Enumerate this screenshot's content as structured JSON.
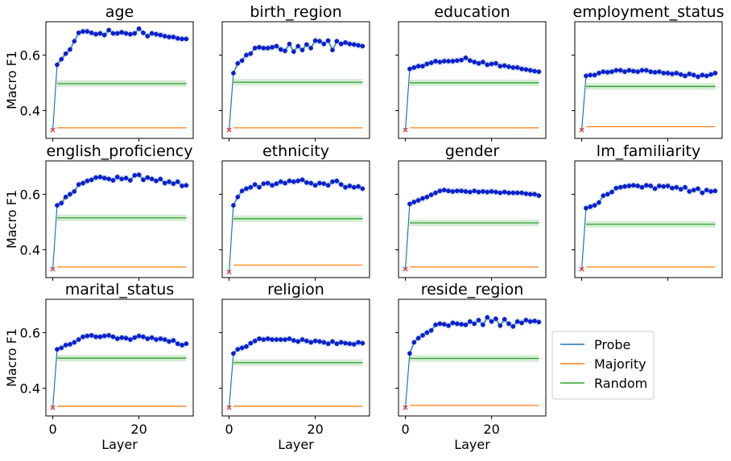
{
  "chart_data": {
    "type": "line",
    "ylabel": "Macro F1",
    "xlabel": "Layer",
    "xlim": [
      -1.6,
      32.6
    ],
    "ylim": [
      0.3,
      0.72
    ],
    "xticks": [
      0,
      20
    ],
    "yticks": [
      0.4,
      0.6
    ],
    "ytick_labels": [
      "0.4",
      "0.6"
    ],
    "layers": [
      0,
      1,
      2,
      3,
      4,
      5,
      6,
      7,
      8,
      9,
      10,
      11,
      12,
      13,
      14,
      15,
      16,
      17,
      18,
      19,
      20,
      21,
      22,
      23,
      24,
      25,
      26,
      27,
      28,
      29,
      30,
      31
    ],
    "legend": {
      "placement": "right",
      "entries": [
        {
          "name": "Probe",
          "color": "#1f77b4"
        },
        {
          "name": "Majority",
          "color": "#ff7f0e"
        },
        {
          "name": "Random",
          "color": "#2ca02c"
        }
      ]
    },
    "panels": [
      {
        "title": "age",
        "majority": 0.338,
        "random": 0.497,
        "probe": [
          0.33,
          0.565,
          0.585,
          0.605,
          0.62,
          0.65,
          0.68,
          0.685,
          0.685,
          0.68,
          0.675,
          0.678,
          0.672,
          0.69,
          0.678,
          0.678,
          0.682,
          0.678,
          0.675,
          0.678,
          0.695,
          0.68,
          0.668,
          0.678,
          0.675,
          0.672,
          0.668,
          0.665,
          0.665,
          0.66,
          0.658,
          0.658
        ]
      },
      {
        "title": "birth_region",
        "majority": 0.338,
        "random": 0.502,
        "probe": [
          0.33,
          0.535,
          0.57,
          0.58,
          0.6,
          0.605,
          0.625,
          0.628,
          0.625,
          0.625,
          0.628,
          0.632,
          0.62,
          0.615,
          0.64,
          0.612,
          0.632,
          0.618,
          0.638,
          0.625,
          0.652,
          0.65,
          0.64,
          0.652,
          0.618,
          0.65,
          0.64,
          0.645,
          0.64,
          0.638,
          0.635,
          0.632
        ]
      },
      {
        "title": "education",
        "majority": 0.338,
        "random": 0.5,
        "probe": [
          0.33,
          0.55,
          0.555,
          0.56,
          0.56,
          0.568,
          0.572,
          0.578,
          0.575,
          0.578,
          0.578,
          0.578,
          0.58,
          0.582,
          0.59,
          0.58,
          0.575,
          0.57,
          0.575,
          0.565,
          0.568,
          0.57,
          0.56,
          0.562,
          0.558,
          0.555,
          0.555,
          0.55,
          0.548,
          0.545,
          0.542,
          0.54
        ]
      },
      {
        "title": "employment_status",
        "majority": 0.342,
        "random": 0.487,
        "probe": [
          0.33,
          0.525,
          0.528,
          0.528,
          0.535,
          0.54,
          0.538,
          0.54,
          0.545,
          0.545,
          0.54,
          0.545,
          0.542,
          0.54,
          0.545,
          0.545,
          0.54,
          0.538,
          0.54,
          0.535,
          0.535,
          0.532,
          0.535,
          0.53,
          0.525,
          0.532,
          0.528,
          0.522,
          0.528,
          0.525,
          0.53,
          0.535
        ]
      },
      {
        "title": "english_proficiency",
        "majority": 0.338,
        "random": 0.515,
        "probe": [
          0.33,
          0.56,
          0.568,
          0.59,
          0.6,
          0.61,
          0.635,
          0.64,
          0.648,
          0.652,
          0.66,
          0.662,
          0.658,
          0.655,
          0.65,
          0.662,
          0.655,
          0.658,
          0.65,
          0.668,
          0.67,
          0.652,
          0.66,
          0.655,
          0.648,
          0.655,
          0.64,
          0.645,
          0.638,
          0.645,
          0.63,
          0.632
        ]
      },
      {
        "title": "ethnicity",
        "majority": 0.345,
        "random": 0.512,
        "probe": [
          0.32,
          0.56,
          0.59,
          0.612,
          0.62,
          0.625,
          0.635,
          0.625,
          0.638,
          0.64,
          0.632,
          0.638,
          0.645,
          0.64,
          0.648,
          0.645,
          0.648,
          0.652,
          0.642,
          0.64,
          0.632,
          0.64,
          0.638,
          0.632,
          0.645,
          0.648,
          0.635,
          0.625,
          0.63,
          0.625,
          0.628,
          0.62
        ]
      },
      {
        "title": "gender",
        "majority": 0.338,
        "random": 0.497,
        "probe": [
          0.33,
          0.565,
          0.572,
          0.578,
          0.585,
          0.59,
          0.598,
          0.605,
          0.612,
          0.615,
          0.612,
          0.61,
          0.612,
          0.612,
          0.61,
          0.608,
          0.612,
          0.608,
          0.61,
          0.608,
          0.61,
          0.608,
          0.605,
          0.608,
          0.605,
          0.605,
          0.605,
          0.605,
          0.602,
          0.6,
          0.6,
          0.595
        ]
      },
      {
        "title": "lm_familiarity",
        "majority": 0.338,
        "random": 0.492,
        "probe": [
          0.33,
          0.55,
          0.555,
          0.56,
          0.57,
          0.595,
          0.6,
          0.608,
          0.622,
          0.625,
          0.628,
          0.63,
          0.632,
          0.63,
          0.625,
          0.632,
          0.63,
          0.62,
          0.63,
          0.628,
          0.63,
          0.622,
          0.625,
          0.618,
          0.625,
          0.61,
          0.615,
          0.62,
          0.605,
          0.615,
          0.61,
          0.612
        ]
      },
      {
        "title": "marital_status",
        "majority": 0.335,
        "random": 0.508,
        "probe": [
          0.33,
          0.54,
          0.545,
          0.555,
          0.558,
          0.565,
          0.575,
          0.585,
          0.588,
          0.59,
          0.585,
          0.585,
          0.588,
          0.59,
          0.585,
          0.578,
          0.582,
          0.58,
          0.575,
          0.582,
          0.588,
          0.585,
          0.578,
          0.582,
          0.575,
          0.578,
          0.575,
          0.568,
          0.572,
          0.56,
          0.555,
          0.56
        ]
      },
      {
        "title": "religion",
        "majority": 0.335,
        "random": 0.492,
        "probe": [
          0.33,
          0.525,
          0.54,
          0.545,
          0.55,
          0.562,
          0.57,
          0.578,
          0.575,
          0.578,
          0.575,
          0.575,
          0.575,
          0.575,
          0.578,
          0.572,
          0.568,
          0.575,
          0.57,
          0.565,
          0.57,
          0.568,
          0.565,
          0.56,
          0.568,
          0.56,
          0.565,
          0.562,
          0.56,
          0.558,
          0.565,
          0.562
        ]
      },
      {
        "title": "reside_region",
        "majority": 0.338,
        "random": 0.507,
        "probe": [
          0.33,
          0.525,
          0.565,
          0.58,
          0.59,
          0.6,
          0.608,
          0.628,
          0.632,
          0.63,
          0.625,
          0.635,
          0.632,
          0.63,
          0.628,
          0.64,
          0.632,
          0.645,
          0.628,
          0.655,
          0.64,
          0.65,
          0.625,
          0.648,
          0.632,
          0.622,
          0.64,
          0.635,
          0.645,
          0.64,
          0.642,
          0.638
        ]
      }
    ]
  }
}
